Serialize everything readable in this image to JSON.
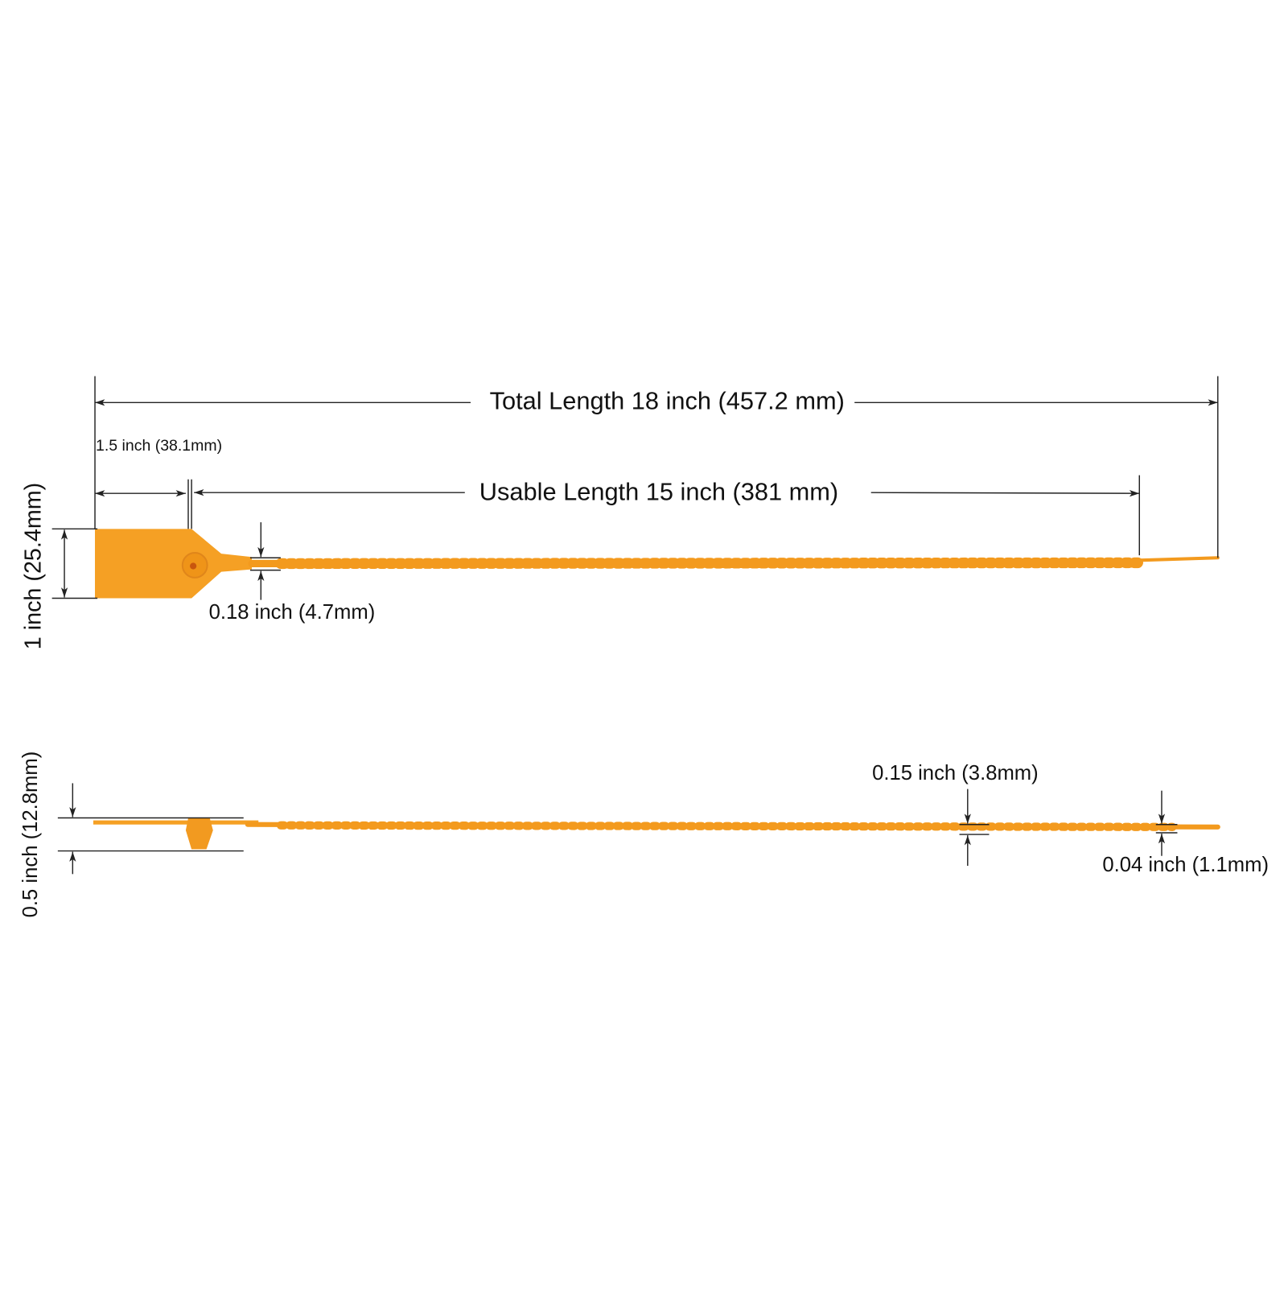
{
  "dimensions": {
    "total_length": "Total Length 18 inch (457.2 mm)",
    "usable_length": "Usable Length 15 inch (381 mm)",
    "tag_length": "1.5 inch (38.1mm)",
    "tag_height": "1 inch (25.4mm)",
    "tail_width": "0.18 inch (4.7mm)",
    "side_height": "0.5 inch (12.8mm)",
    "strap_width": "0.15 inch (3.8mm)",
    "tip_width": "0.04 inch (1.1mm)"
  }
}
